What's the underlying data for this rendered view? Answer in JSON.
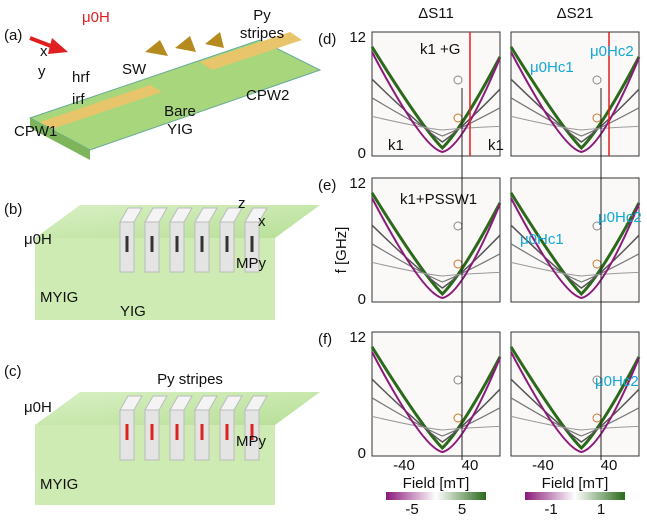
{
  "panel_a": {
    "label": "(a)",
    "field": "μ0H",
    "py_stripes": [
      "Py",
      "stripes"
    ],
    "axis_x": "x",
    "axis_y": "y",
    "sw": "SW",
    "h_rf": "hrf",
    "i_rf": "irf",
    "cpw1": "CPW1",
    "cpw2": "CPW2",
    "bare_yig": [
      "Bare",
      "YIG"
    ]
  },
  "panel_b": {
    "label": "(b)",
    "axis_z": "z",
    "axis_x": "x",
    "field": "μ0H",
    "m_py": "MPy",
    "m_yig": "MYIG",
    "yig": "YIG"
  },
  "panel_c": {
    "label": "(c)",
    "py_stripes": "Py stripes",
    "field": "μ0H",
    "m_py": "MPy",
    "m_yig": "MYIG"
  },
  "spectra": {
    "col_titles": [
      "ΔS11",
      "ΔS21"
    ],
    "y_axis_label": "f [GHz]",
    "y_ticks": [
      "12",
      "0"
    ],
    "x_ticks": [
      "-40",
      "40"
    ],
    "x_axis_label": "Field [mT]",
    "colorbar_ticks": [
      [
        "-5",
        "5"
      ],
      [
        "-1",
        "1"
      ]
    ],
    "rows": [
      {
        "label": "(d)",
        "annotations": [
          "k1 +G",
          "k1",
          "k1",
          "μ0Hc2",
          "μ0Hc1"
        ]
      },
      {
        "label": "(e)",
        "annotations": [
          "k1+PSSW1",
          "μ0Hc1",
          "μ0Hc2"
        ]
      },
      {
        "label": "(f)",
        "annotations": [
          "μ0Hc2"
        ]
      }
    ]
  }
}
